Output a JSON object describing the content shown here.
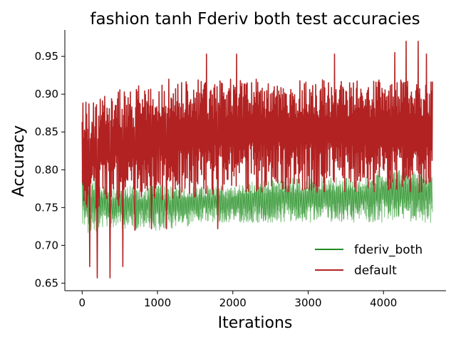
{
  "chart_data": {
    "type": "line",
    "title": "fashion tanh Fderiv both test accuracies",
    "xlabel": "Iterations",
    "ylabel": "Accuracy",
    "xlim": [
      -230,
      4830
    ],
    "ylim": [
      0.64,
      0.985
    ],
    "xticks": [
      0,
      1000,
      2000,
      3000,
      4000
    ],
    "yticks": [
      0.65,
      0.7,
      0.75,
      0.8,
      0.85,
      0.9,
      0.95
    ],
    "ytick_labels": [
      "0.65",
      "0.70",
      "0.75",
      "0.80",
      "0.85",
      "0.90",
      "0.95"
    ],
    "grid": false,
    "legend_position": "lower-right",
    "n_iterations": 4650,
    "series": [
      {
        "name": "fderiv_both",
        "color": "#228b22",
        "fill_color": "#8fc98f",
        "x": [
          0,
          100,
          200,
          300,
          500,
          700,
          900,
          1100,
          1300,
          1500,
          1700,
          1900,
          2100,
          2300,
          2500,
          2700,
          2900,
          3100,
          3300,
          3500,
          3700,
          3900,
          4100,
          4300,
          4500,
          4650
        ],
        "upper": [
          0.8,
          0.79,
          0.79,
          0.78,
          0.78,
          0.78,
          0.78,
          0.78,
          0.78,
          0.78,
          0.78,
          0.78,
          0.78,
          0.79,
          0.79,
          0.79,
          0.79,
          0.79,
          0.79,
          0.79,
          0.79,
          0.8,
          0.8,
          0.8,
          0.8,
          0.8
        ],
        "lower": [
          0.73,
          0.71,
          0.72,
          0.72,
          0.72,
          0.72,
          0.72,
          0.72,
          0.72,
          0.73,
          0.73,
          0.73,
          0.73,
          0.73,
          0.73,
          0.73,
          0.73,
          0.73,
          0.73,
          0.73,
          0.73,
          0.73,
          0.73,
          0.73,
          0.73,
          0.73
        ]
      },
      {
        "name": "default",
        "color": "#b22222",
        "x": [
          0,
          100,
          200,
          300,
          500,
          700,
          900,
          1100,
          1300,
          1500,
          1700,
          1900,
          2100,
          2300,
          2500,
          2700,
          2900,
          3100,
          3300,
          3500,
          3700,
          3900,
          4100,
          4300,
          4500,
          4650
        ],
        "upper": [
          0.89,
          0.89,
          0.89,
          0.91,
          0.91,
          0.91,
          0.92,
          0.92,
          0.92,
          0.92,
          0.92,
          0.92,
          0.92,
          0.92,
          0.92,
          0.92,
          0.92,
          0.92,
          0.92,
          0.92,
          0.92,
          0.92,
          0.92,
          0.92,
          0.92,
          0.92
        ],
        "lower": [
          0.74,
          0.74,
          0.74,
          0.75,
          0.75,
          0.75,
          0.76,
          0.76,
          0.76,
          0.76,
          0.76,
          0.77,
          0.77,
          0.77,
          0.77,
          0.77,
          0.77,
          0.77,
          0.77,
          0.77,
          0.77,
          0.77,
          0.77,
          0.77,
          0.77,
          0.77
        ],
        "spike_max": [
          [
            1650,
            0.953
          ],
          [
            2050,
            0.953
          ],
          [
            3350,
            0.953
          ],
          [
            4150,
            0.955
          ],
          [
            4300,
            0.97
          ],
          [
            4460,
            0.97
          ],
          [
            4570,
            0.953
          ]
        ],
        "spike_min": [
          [
            100,
            0.672
          ],
          [
            200,
            0.657
          ],
          [
            370,
            0.657
          ],
          [
            540,
            0.672
          ],
          [
            700,
            0.72
          ],
          [
            920,
            0.722
          ],
          [
            1120,
            0.722
          ],
          [
            1800,
            0.722
          ]
        ]
      }
    ]
  }
}
